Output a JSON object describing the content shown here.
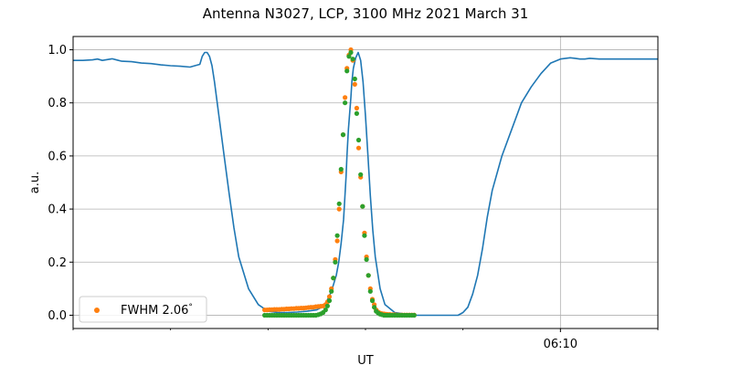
{
  "chart_data": {
    "type": "scatter",
    "title": "Antenna N3027, LCP, 3100 MHz 2021 March 31",
    "xlabel": "UT",
    "ylabel": "a.u.",
    "x_unit": "minutes UT",
    "xlim": [
      360,
      372
    ],
    "ylim": [
      -0.05,
      1.05
    ],
    "xticks": [
      {
        "value": 370,
        "label": "06:10"
      }
    ],
    "x_minor_ticks": [
      360,
      362,
      364,
      366,
      368,
      372
    ],
    "yticks": [
      {
        "value": 0.0,
        "label": "0.0"
      },
      {
        "value": 0.2,
        "label": "0.2"
      },
      {
        "value": 0.4,
        "label": "0.4"
      },
      {
        "value": 0.6,
        "label": "0.6"
      },
      {
        "value": 0.8,
        "label": "0.8"
      },
      {
        "value": 1.0,
        "label": "1.0"
      }
    ],
    "grid": true,
    "legend": {
      "placement": "lower-left",
      "entries": [
        "FWHM 2.06$^\\circ$"
      ],
      "display": [
        "FWHM 2.06",
        "°"
      ]
    },
    "series": [
      {
        "kind": "line",
        "color": "#1f77b4",
        "x": [
          360.0,
          360.2,
          360.4,
          360.5,
          360.6,
          360.8,
          361.0,
          361.2,
          361.4,
          361.6,
          361.8,
          362.0,
          362.2,
          362.4,
          362.5,
          362.6,
          362.65,
          362.7,
          362.75,
          362.8,
          362.85,
          362.9,
          363.0,
          363.1,
          363.2,
          363.3,
          363.4,
          363.6,
          363.8,
          364.0,
          364.2,
          364.4,
          364.6,
          364.8,
          365.0,
          365.1,
          365.2,
          365.3,
          365.4,
          365.45,
          365.5,
          365.55,
          365.6,
          365.62,
          365.65,
          365.7,
          365.72,
          365.75,
          365.8,
          365.85,
          365.9,
          365.95,
          366.0,
          366.05,
          366.1,
          366.15,
          366.2,
          366.3,
          366.4,
          366.6,
          366.8,
          367.0,
          367.2,
          367.4,
          367.5,
          367.6,
          367.7,
          367.8,
          367.9,
          368.0,
          368.1,
          368.2,
          368.3,
          368.4,
          368.5,
          368.6,
          368.8,
          369.0,
          369.2,
          369.4,
          369.6,
          369.8,
          370.0,
          370.2,
          370.3,
          370.4,
          370.5,
          370.6,
          370.8,
          371.0,
          371.5,
          372.0
        ],
        "y": [
          0.96,
          0.96,
          0.962,
          0.965,
          0.96,
          0.966,
          0.957,
          0.955,
          0.95,
          0.948,
          0.943,
          0.94,
          0.938,
          0.935,
          0.94,
          0.945,
          0.975,
          0.99,
          0.99,
          0.975,
          0.94,
          0.88,
          0.74,
          0.6,
          0.46,
          0.33,
          0.22,
          0.1,
          0.04,
          0.015,
          0.01,
          0.01,
          0.012,
          0.015,
          0.02,
          0.03,
          0.05,
          0.09,
          0.15,
          0.2,
          0.27,
          0.36,
          0.52,
          0.6,
          0.7,
          0.82,
          0.88,
          0.93,
          0.97,
          0.99,
          0.96,
          0.88,
          0.75,
          0.6,
          0.45,
          0.32,
          0.22,
          0.1,
          0.04,
          0.01,
          0.005,
          0.0,
          0.0,
          0.0,
          0.0,
          0.0,
          0.0,
          0.0,
          0.0,
          0.01,
          0.03,
          0.08,
          0.15,
          0.25,
          0.37,
          0.47,
          0.6,
          0.7,
          0.8,
          0.86,
          0.91,
          0.95,
          0.965,
          0.97,
          0.968,
          0.965,
          0.965,
          0.968,
          0.965,
          0.965,
          0.965,
          0.965
        ]
      },
      {
        "kind": "points",
        "color": "#ff7f0e",
        "x": [
          363.93,
          363.98,
          364.03,
          364.08,
          364.13,
          364.18,
          364.23,
          364.28,
          364.33,
          364.38,
          364.43,
          364.48,
          364.53,
          364.58,
          364.63,
          364.68,
          364.73,
          364.78,
          364.83,
          364.88,
          364.93,
          364.98,
          365.03,
          365.08,
          365.13,
          365.18,
          365.22,
          365.26,
          365.3,
          365.34,
          365.38,
          365.42,
          365.46,
          365.5,
          365.54,
          365.58,
          365.62,
          365.66,
          365.7,
          365.74,
          365.78,
          365.82,
          365.86,
          365.9,
          365.94,
          365.98,
          366.02,
          366.06,
          366.1,
          366.14,
          366.18,
          366.22,
          366.26,
          366.3,
          366.34,
          366.38,
          366.42,
          366.46,
          366.5,
          366.55,
          366.6,
          366.65,
          366.7,
          366.75,
          366.8,
          366.85,
          366.9,
          366.95,
          367.0
        ],
        "y": [
          0.02,
          0.02,
          0.021,
          0.021,
          0.022,
          0.022,
          0.022,
          0.023,
          0.023,
          0.024,
          0.024,
          0.025,
          0.025,
          0.026,
          0.026,
          0.027,
          0.027,
          0.028,
          0.029,
          0.03,
          0.03,
          0.032,
          0.033,
          0.034,
          0.035,
          0.04,
          0.05,
          0.07,
          0.1,
          0.14,
          0.21,
          0.28,
          0.4,
          0.54,
          0.68,
          0.82,
          0.93,
          0.98,
          1.0,
          0.96,
          0.87,
          0.78,
          0.63,
          0.52,
          0.41,
          0.31,
          0.22,
          0.15,
          0.1,
          0.06,
          0.04,
          0.02,
          0.012,
          0.008,
          0.006,
          0.005,
          0.004,
          0.003,
          0.003,
          0.002,
          0.002,
          0.001,
          0.001,
          0.001,
          0.001,
          0.001,
          0.001,
          0.001,
          0.001
        ]
      },
      {
        "kind": "points",
        "color": "#2ca02c",
        "x": [
          363.93,
          363.98,
          364.03,
          364.08,
          364.13,
          364.18,
          364.23,
          364.28,
          364.33,
          364.38,
          364.43,
          364.48,
          364.53,
          364.58,
          364.63,
          364.68,
          364.73,
          364.78,
          364.83,
          364.88,
          364.93,
          364.98,
          365.03,
          365.08,
          365.13,
          365.18,
          365.22,
          365.26,
          365.3,
          365.34,
          365.38,
          365.42,
          365.46,
          365.5,
          365.54,
          365.58,
          365.62,
          365.66,
          365.7,
          365.74,
          365.78,
          365.82,
          365.86,
          365.9,
          365.94,
          365.98,
          366.02,
          366.06,
          366.1,
          366.14,
          366.18,
          366.22,
          366.26,
          366.3,
          366.34,
          366.38,
          366.42,
          366.46,
          366.5,
          366.55,
          366.6,
          366.65,
          366.7,
          366.75,
          366.8,
          366.85,
          366.9,
          366.95,
          367.0
        ],
        "y": [
          0.0,
          0.0,
          0.0,
          0.0,
          0.0,
          0.0,
          0.0,
          0.0,
          0.0,
          0.0,
          0.0,
          0.0,
          0.0,
          0.0,
          0.0,
          0.0,
          0.0,
          0.0,
          0.0,
          0.0,
          0.0,
          0.0,
          0.002,
          0.005,
          0.01,
          0.02,
          0.035,
          0.055,
          0.09,
          0.14,
          0.2,
          0.3,
          0.42,
          0.55,
          0.68,
          0.8,
          0.92,
          0.975,
          0.99,
          0.965,
          0.89,
          0.76,
          0.66,
          0.53,
          0.41,
          0.3,
          0.21,
          0.15,
          0.09,
          0.055,
          0.03,
          0.015,
          0.008,
          0.004,
          0.002,
          0.0,
          0.0,
          0.0,
          0.0,
          0.0,
          0.0,
          0.0,
          0.0,
          0.0,
          0.0,
          0.0,
          0.0,
          0.0,
          0.0
        ]
      }
    ]
  }
}
